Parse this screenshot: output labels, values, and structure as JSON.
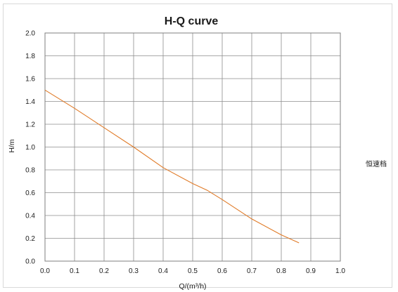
{
  "chart_data": {
    "type": "line",
    "title": "H-Q  curve",
    "xlabel": "Q/(m³/h)",
    "ylabel": "H/m",
    "xlim": [
      0.0,
      1.0
    ],
    "ylim": [
      0.0,
      2.0
    ],
    "x_ticks": [
      "0.0",
      "0.1",
      "0.2",
      "0.3",
      "0.4",
      "0.5",
      "0.6",
      "0.7",
      "0.8",
      "0.9",
      "1.0"
    ],
    "y_ticks": [
      "0.0",
      "0.2",
      "0.4",
      "0.6",
      "0.8",
      "1.0",
      "1.2",
      "1.4",
      "1.6",
      "1.8",
      "2.0"
    ],
    "grid": true,
    "legend_position": "right",
    "series": [
      {
        "name": "恒速档",
        "color": "#e07b28",
        "x": [
          0.0,
          0.1,
          0.2,
          0.3,
          0.4,
          0.5,
          0.55,
          0.6,
          0.7,
          0.8,
          0.86
        ],
        "y": [
          1.5,
          1.34,
          1.17,
          1.0,
          0.82,
          0.68,
          0.62,
          0.54,
          0.37,
          0.23,
          0.16
        ]
      }
    ]
  }
}
